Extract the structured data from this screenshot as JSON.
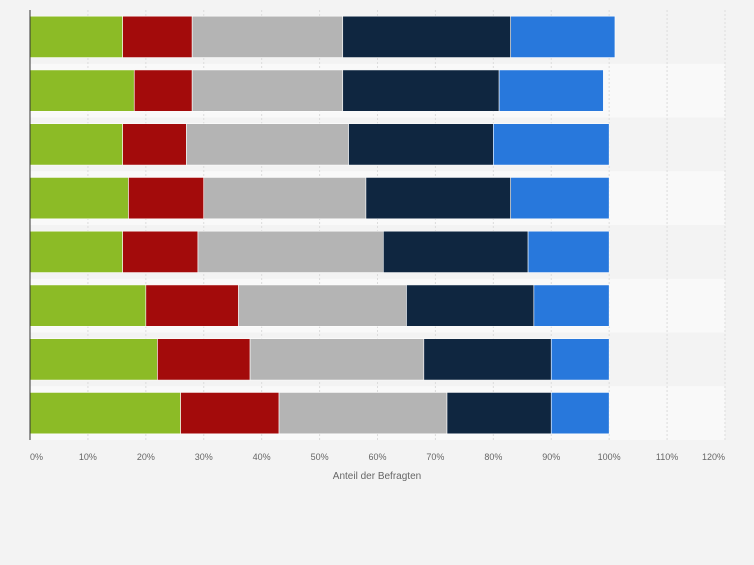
{
  "chart_data": {
    "type": "bar",
    "orientation": "horizontal",
    "stacked": true,
    "xlabel": "Anteil der Befragten",
    "xlim": [
      0,
      120
    ],
    "x_ticks": [
      "0%",
      "10%",
      "20%",
      "30%",
      "40%",
      "50%",
      "60%",
      "70%",
      "80%",
      "90%",
      "100%",
      "110%",
      "120%"
    ],
    "grid": true,
    "category_count_note": "",
    "categories": [
      "",
      "",
      "",
      "",
      "",
      "",
      "",
      ""
    ],
    "series": [
      {
        "color": "#8cbb26",
        "values": [
          16,
          18,
          16,
          17,
          16,
          20,
          22,
          26
        ]
      },
      {
        "color": "#a30b0b",
        "values": [
          12,
          10,
          11,
          13,
          13,
          16,
          16,
          17
        ]
      },
      {
        "color": "#b4b4b4",
        "values": [
          26,
          26,
          28,
          28,
          32,
          29,
          30,
          29
        ]
      },
      {
        "color": "#0f2640",
        "values": [
          29,
          27,
          25,
          25,
          25,
          22,
          22,
          18
        ]
      },
      {
        "color": "#2878dc",
        "values": [
          18,
          18,
          20,
          17,
          14,
          13,
          10,
          10
        ]
      }
    ]
  }
}
